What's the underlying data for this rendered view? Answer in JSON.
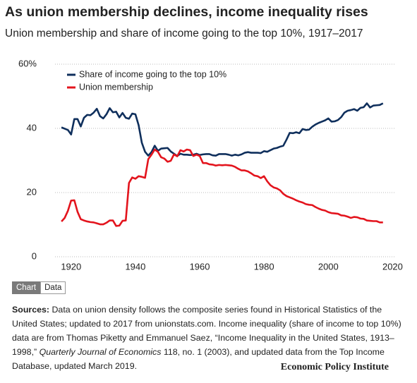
{
  "chart_data": {
    "type": "line",
    "title": "As union membership declines, income inequality rises",
    "subtitle": "Union membership and share of income going to the top 10%, 1917–2017",
    "x": [
      1917,
      1918,
      1919,
      1920,
      1921,
      1922,
      1923,
      1924,
      1925,
      1926,
      1927,
      1928,
      1929,
      1930,
      1931,
      1932,
      1933,
      1934,
      1935,
      1936,
      1937,
      1938,
      1939,
      1940,
      1941,
      1942,
      1943,
      1944,
      1945,
      1946,
      1947,
      1948,
      1949,
      1950,
      1951,
      1952,
      1953,
      1954,
      1955,
      1956,
      1957,
      1958,
      1959,
      1960,
      1961,
      1962,
      1963,
      1964,
      1965,
      1966,
      1967,
      1968,
      1969,
      1970,
      1971,
      1972,
      1973,
      1974,
      1975,
      1976,
      1977,
      1978,
      1979,
      1980,
      1981,
      1982,
      1983,
      1984,
      1985,
      1986,
      1987,
      1988,
      1989,
      1990,
      1991,
      1992,
      1993,
      1994,
      1995,
      1996,
      1997,
      1998,
      1999,
      2000,
      2001,
      2002,
      2003,
      2004,
      2005,
      2006,
      2007,
      2008,
      2009,
      2010,
      2011,
      2012,
      2013,
      2014,
      2015,
      2016,
      2017
    ],
    "series": [
      {
        "name": "Share of income going to the top 10%",
        "color": "#0f2f5c",
        "values": [
          40.3,
          39.9,
          39.5,
          38.1,
          42.9,
          42.9,
          40.6,
          43.3,
          44.2,
          44.1,
          44.9,
          46.1,
          43.8,
          43.1,
          44.4,
          46.3,
          45.0,
          45.2,
          43.4,
          44.8,
          43.3,
          43.0,
          44.6,
          44.4,
          41.0,
          35.5,
          32.7,
          31.5,
          32.6,
          34.6,
          33.0,
          33.7,
          33.8,
          33.9,
          32.8,
          32.1,
          31.4,
          32.1,
          31.8,
          31.8,
          31.7,
          31.8,
          32.1,
          31.7,
          31.9,
          32.0,
          32.0,
          31.6,
          31.5,
          32.0,
          32.0,
          32.0,
          31.8,
          31.5,
          31.8,
          31.6,
          31.9,
          32.4,
          32.6,
          32.4,
          32.4,
          32.4,
          32.3,
          32.9,
          32.7,
          33.2,
          33.7,
          33.9,
          34.3,
          34.6,
          36.5,
          38.6,
          38.5,
          38.8,
          38.5,
          39.8,
          39.5,
          39.6,
          40.5,
          41.2,
          41.7,
          42.1,
          42.5,
          43.1,
          42.1,
          42.2,
          42.6,
          43.5,
          44.9,
          45.5,
          45.7,
          46.0,
          45.5,
          46.4,
          46.6,
          47.8,
          46.5,
          47.1,
          47.2,
          47.3,
          47.8
        ]
      },
      {
        "name": "Union membership",
        "color": "#e3141d",
        "values": [
          11.0,
          12.1,
          14.3,
          17.5,
          17.6,
          14.0,
          11.7,
          11.3,
          11.0,
          10.8,
          10.7,
          10.4,
          10.1,
          10.1,
          10.6,
          11.3,
          11.3,
          9.6,
          9.7,
          11.2,
          11.3,
          23.0,
          24.7,
          24.3,
          25.1,
          24.9,
          24.6,
          30.4,
          31.8,
          33.4,
          32.7,
          31.0,
          30.6,
          29.6,
          29.9,
          31.9,
          31.3,
          33.2,
          32.8,
          33.4,
          33.2,
          31.4,
          31.8,
          31.4,
          29.2,
          29.2,
          28.8,
          28.7,
          28.4,
          28.6,
          28.5,
          28.6,
          28.5,
          28.4,
          28.0,
          27.4,
          26.9,
          26.9,
          26.6,
          26.0,
          25.3,
          25.1,
          24.5,
          25.1,
          23.5,
          22.3,
          21.6,
          21.3,
          20.7,
          19.6,
          18.9,
          18.5,
          18.1,
          17.6,
          17.2,
          16.9,
          16.4,
          16.2,
          16.1,
          15.5,
          15.0,
          14.6,
          14.4,
          13.9,
          13.6,
          13.5,
          13.4,
          12.9,
          12.8,
          12.5,
          12.1,
          12.4,
          12.3,
          11.9,
          11.8,
          11.3,
          11.2,
          11.1,
          11.1,
          10.7,
          10.7
        ]
      }
    ],
    "xlim": [
      1915,
      2021
    ],
    "xticks": [
      1920,
      1940,
      1960,
      1980,
      2000,
      2020
    ],
    "ylim": [
      0,
      60
    ],
    "yticks": [
      0,
      20,
      40,
      {
        "value": 60,
        "label": "60%"
      }
    ],
    "grid": true,
    "legend": "top-left"
  },
  "controls": {
    "chart_tab": "Chart",
    "data_tab": "Data"
  },
  "sources": {
    "label": "Sources:",
    "text_before": "Data on union density follows the composite series found in Historical Statistics of the United States; updated to 2017 from unionstats.com. Income inequality (share of income to top 10%) data are from Thomas Piketty and Emmanuel Saez, “Income Inequality in the United States, 1913–1998,”",
    "journal": "Quarterly Journal of Economics",
    "text_after": "118, no. 1 (2003), and updated data from the Top Income Database, updated March 2019."
  },
  "credit": "Economic Policy Institute"
}
